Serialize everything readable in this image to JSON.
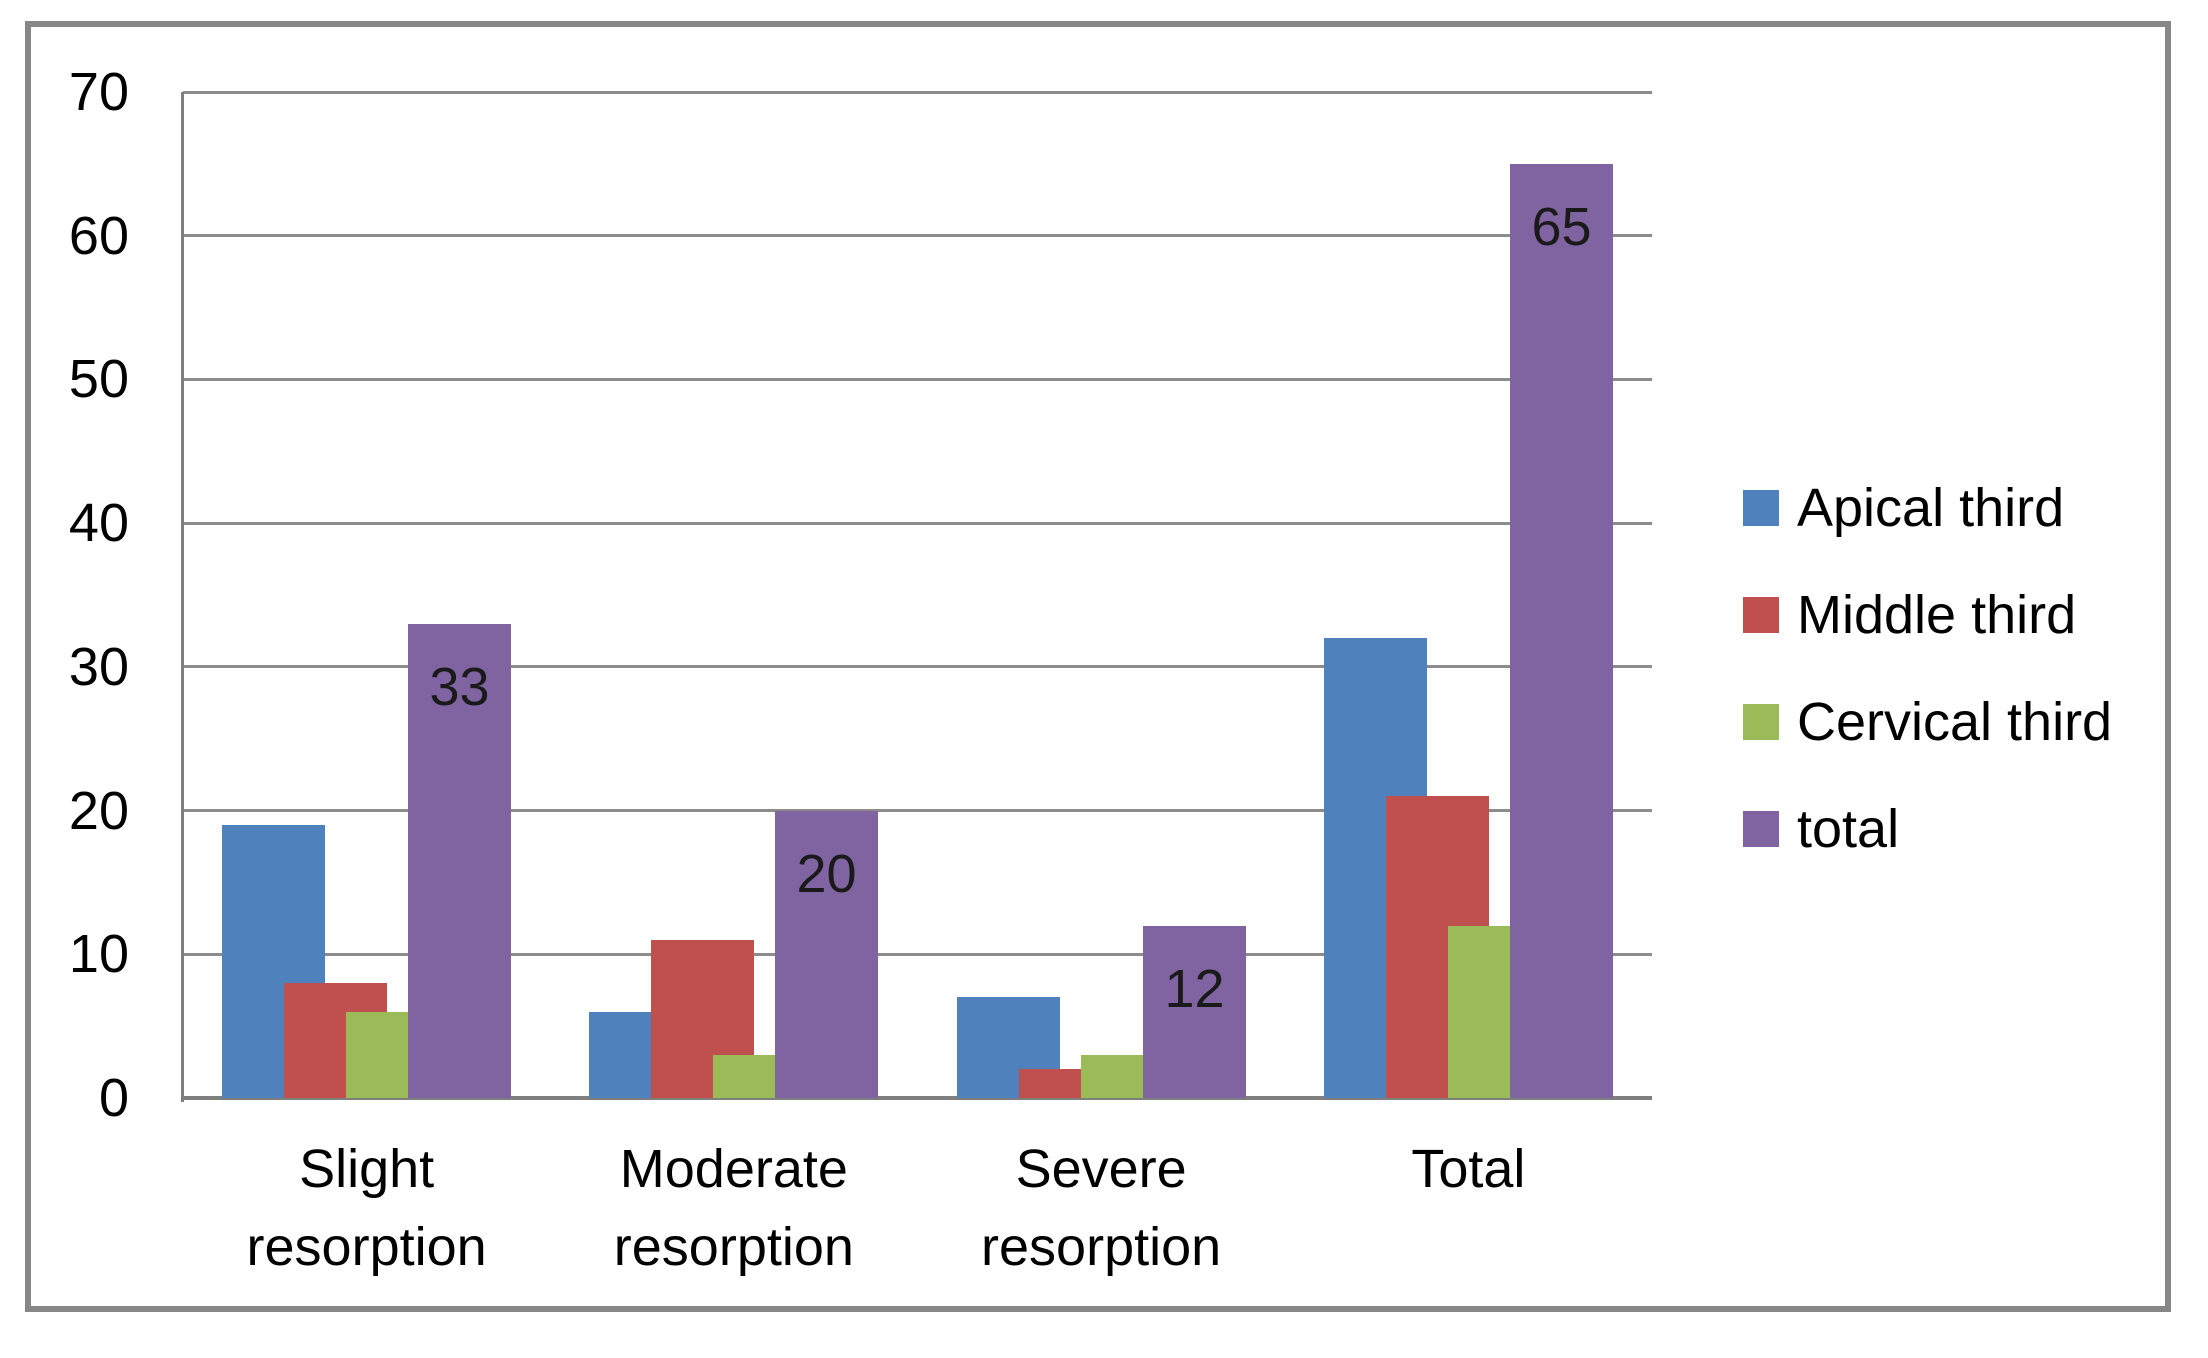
{
  "chart_data": {
    "type": "bar",
    "title": "",
    "categories": [
      "Slight\nresorption",
      "Moderate\nresorption",
      "Severe\nresorption",
      "Total"
    ],
    "series": [
      {
        "name": "Apical third",
        "color": "#4F81BD",
        "values": [
          19,
          6,
          7,
          32
        ],
        "data_labels": false
      },
      {
        "name": "Middle third",
        "color": "#C0504D",
        "values": [
          8,
          11,
          2,
          21
        ],
        "data_labels": false
      },
      {
        "name": "Cervical third",
        "color": "#9BBB59",
        "values": [
          6,
          3,
          3,
          12
        ],
        "data_labels": false
      },
      {
        "name": "total",
        "color": "#8064A2",
        "values": [
          33,
          20,
          12,
          65
        ],
        "data_labels": true
      }
    ],
    "yticks": [
      0,
      10,
      20,
      30,
      40,
      50,
      60,
      70
    ],
    "ylim": [
      0,
      70
    ],
    "xlabel": "",
    "ylabel": "",
    "grid": true,
    "legend_position": "right"
  },
  "colors": {
    "gridline": "#8C8C8C",
    "axis": "#7F7F7F",
    "frame": "#878787",
    "text": "#000000",
    "data_label": "#1a1a1a"
  }
}
